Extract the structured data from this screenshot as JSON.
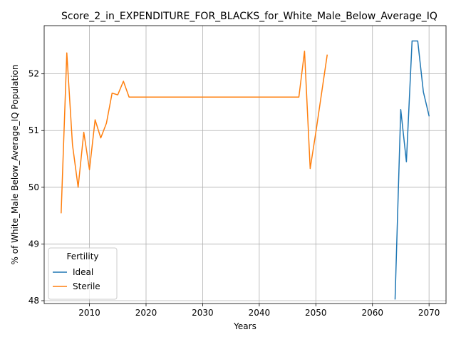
{
  "chart_data": {
    "type": "line",
    "title": "Score_2_in_EXPENDITURE_FOR_BLACKS_for_White_Male_Below_Average_IQ",
    "xlabel": "Years",
    "ylabel": "% of White_Male Below_Average_IQ Population",
    "xlim": [
      2002,
      2073
    ],
    "ylim": [
      47.95,
      52.85
    ],
    "xticks": [
      2010,
      2020,
      2030,
      2040,
      2050,
      2060,
      2070
    ],
    "xtick_labels": [
      "2010",
      "2020",
      "2030",
      "2040",
      "2050",
      "2060",
      "2070"
    ],
    "yticks": [
      48,
      49,
      50,
      51,
      52
    ],
    "ytick_labels": [
      "48",
      "49",
      "50",
      "51",
      "52"
    ],
    "grid": true,
    "legend": {
      "title": "Fertility",
      "placement": "lower-left",
      "entries": [
        "Ideal",
        "Sterile"
      ]
    },
    "series": [
      {
        "name": "Ideal",
        "color": "#1f77b4",
        "x": [
          2064,
          2065,
          2066,
          2067,
          2068,
          2069,
          2070
        ],
        "values": [
          48.03,
          51.37,
          50.45,
          52.58,
          52.58,
          51.68,
          51.26
        ]
      },
      {
        "name": "Sterile",
        "color": "#ff7f0e",
        "x": [
          2005,
          2006,
          2007,
          2008,
          2009,
          2010,
          2011,
          2012,
          2013,
          2014,
          2015,
          2016,
          2017,
          2018,
          2020,
          2025,
          2030,
          2035,
          2040,
          2045,
          2047,
          2048,
          2049,
          2050,
          2051,
          2052
        ],
        "values": [
          49.55,
          52.37,
          50.75,
          50.0,
          50.97,
          50.31,
          51.19,
          50.87,
          51.13,
          51.66,
          51.63,
          51.87,
          51.59,
          51.59,
          51.59,
          51.59,
          51.59,
          51.59,
          51.59,
          51.59,
          51.59,
          52.4,
          50.33,
          50.97,
          51.65,
          52.33
        ]
      }
    ]
  }
}
